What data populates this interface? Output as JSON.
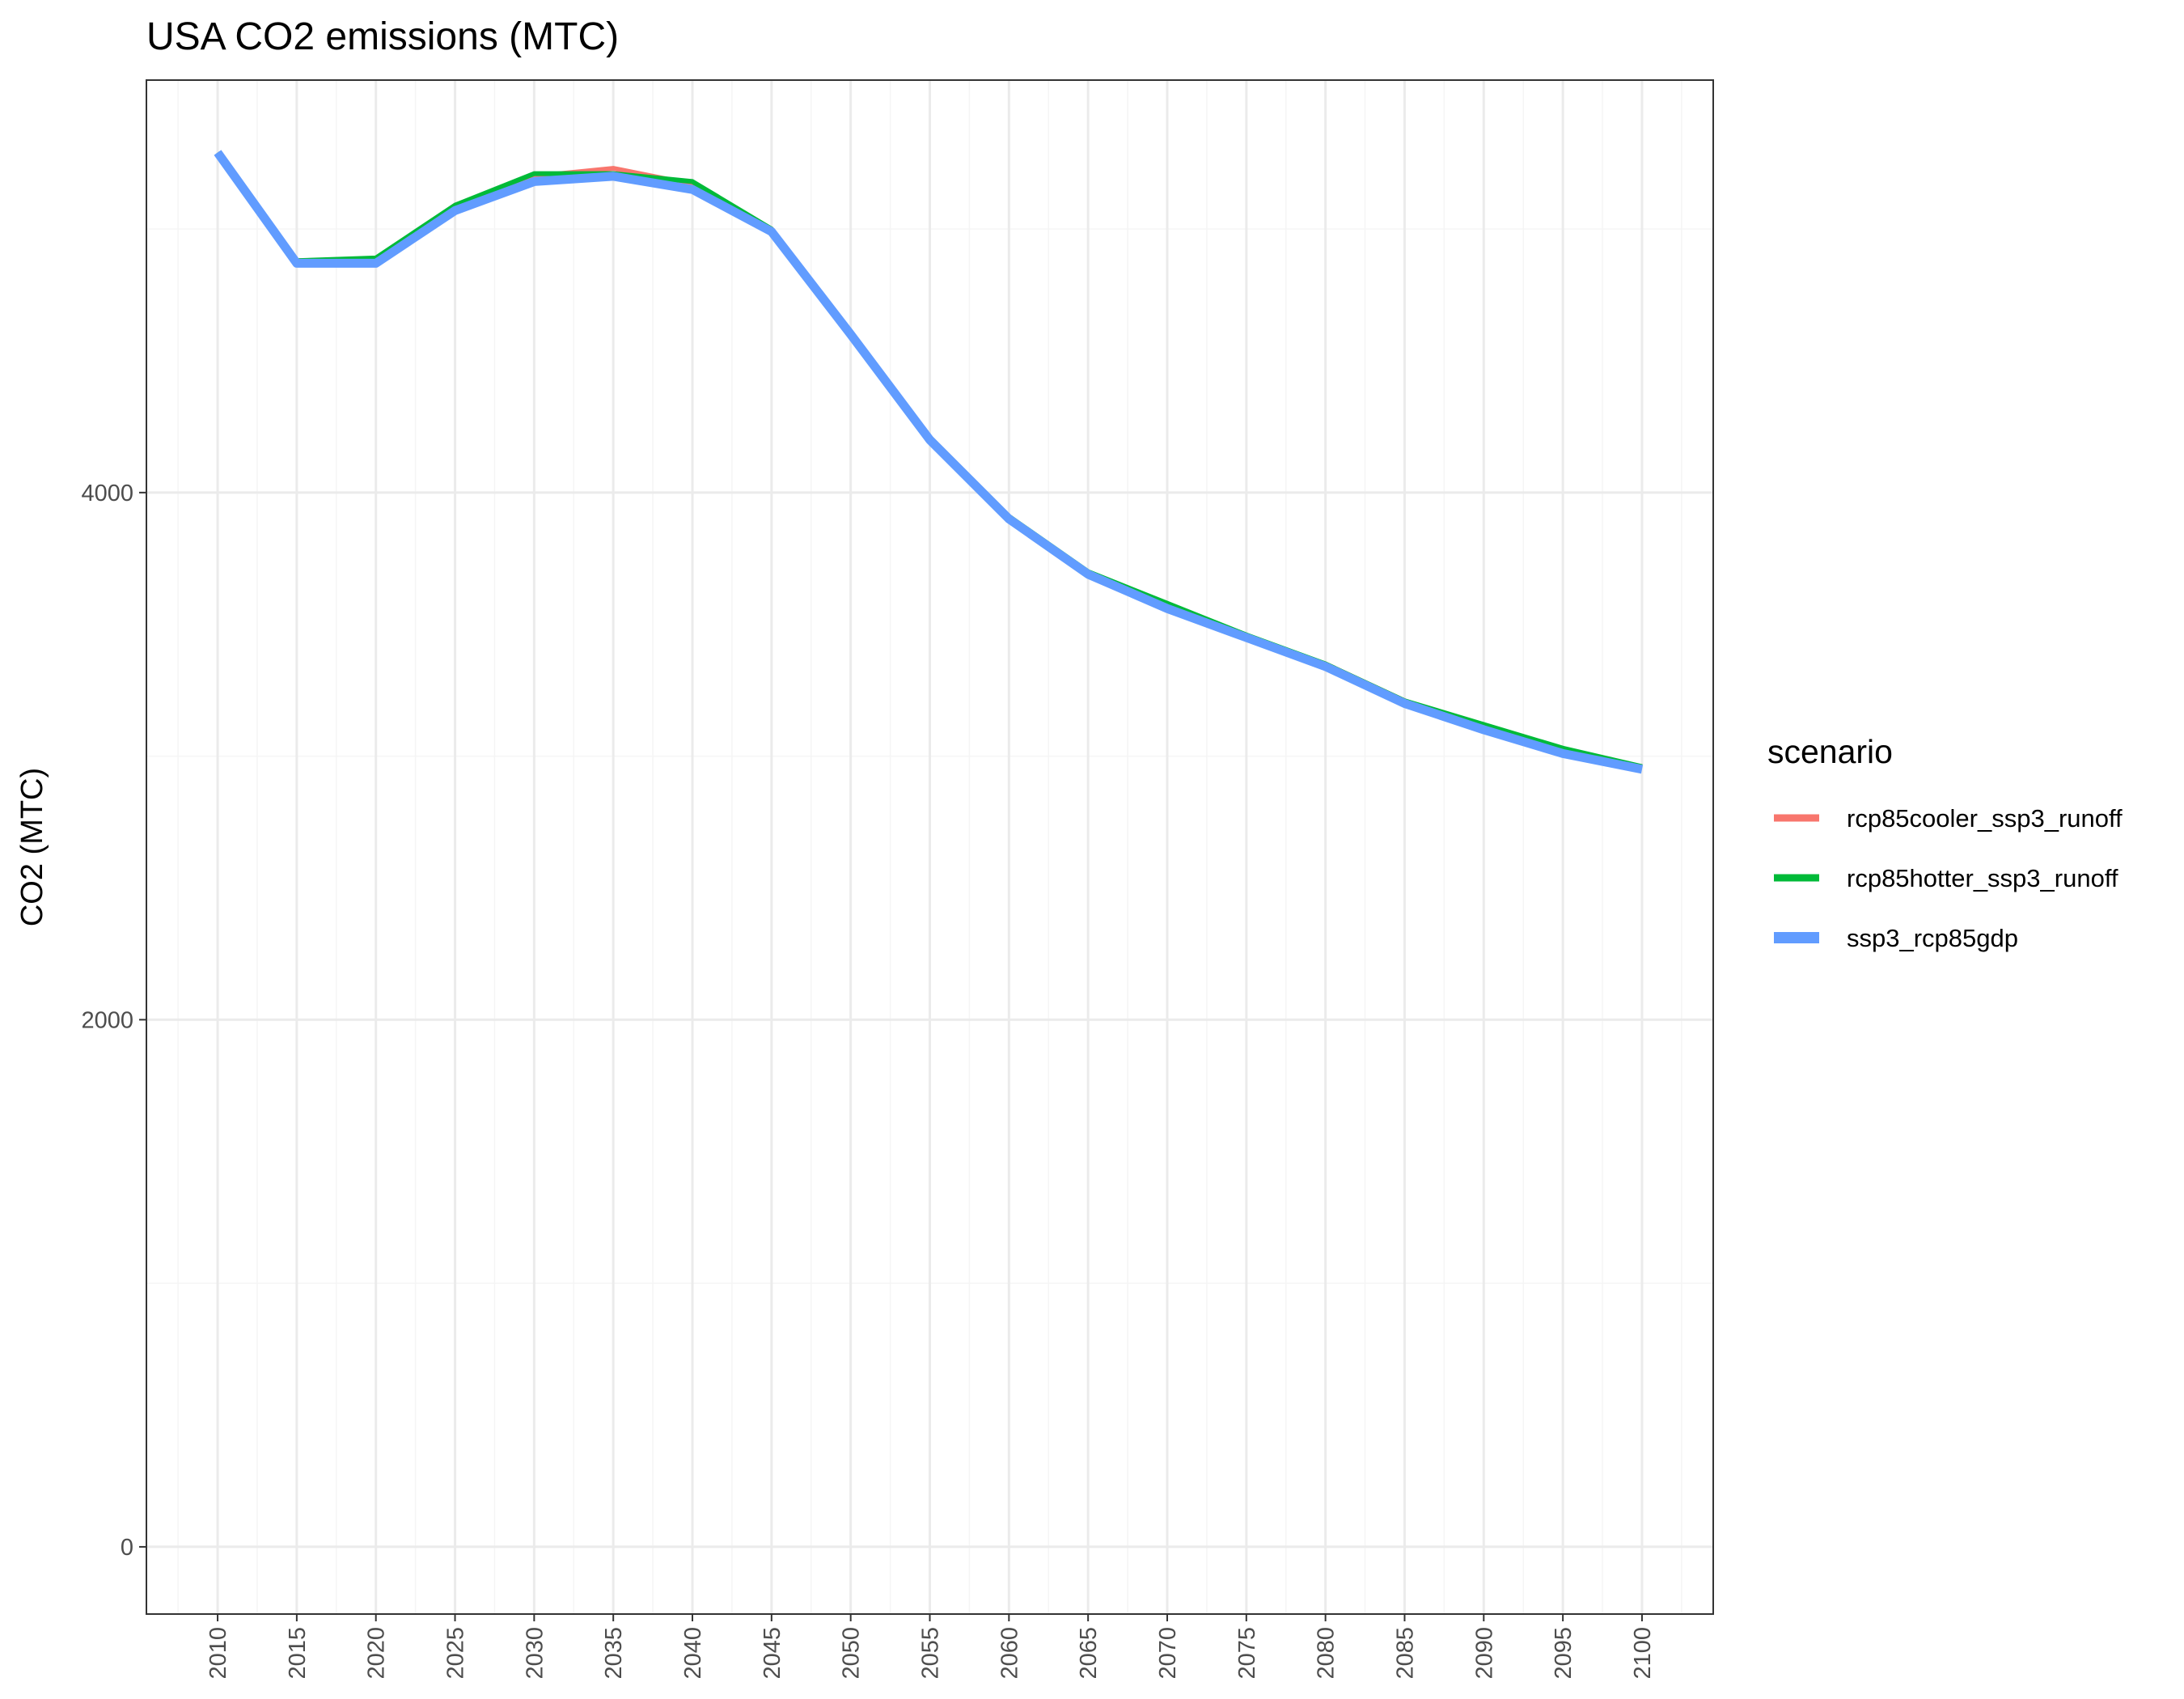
{
  "chart_data": {
    "type": "line",
    "title": "USA CO2 emissions (MTC)",
    "xlabel": "",
    "ylabel": "CO2 (MTC)",
    "x": [
      2010,
      2015,
      2020,
      2025,
      2030,
      2035,
      2040,
      2045,
      2050,
      2055,
      2060,
      2065,
      2070,
      2075,
      2080,
      2085,
      2090,
      2095,
      2100
    ],
    "x_tick_labels": [
      "2010",
      "2015",
      "2020",
      "2025",
      "2030",
      "2035",
      "2040",
      "2045",
      "2050",
      "2055",
      "2060",
      "2065",
      "2070",
      "2075",
      "2080",
      "2085",
      "2090",
      "2095",
      "2100"
    ],
    "y_ticks": [
      0,
      2000,
      4000
    ],
    "y_tick_labels": [
      "0",
      "2000",
      "4000"
    ],
    "xlim": [
      2005.5,
      2104.5
    ],
    "ylim": [
      -255,
      5565
    ],
    "grid": true,
    "legend": {
      "title": "scenario",
      "position": "right"
    },
    "series": [
      {
        "name": "rcp85cooler_ssp3_runoff",
        "color": "#F8766D",
        "values": [
          5290,
          4880,
          4880,
          5090,
          5200,
          5230,
          5170,
          5000,
          4610,
          4210,
          3910,
          3690,
          3560,
          3450,
          3350,
          3210,
          3110,
          3020,
          2960
        ]
      },
      {
        "name": "rcp85hotter_ssp3_runoff",
        "color": "#00BA38",
        "values": [
          5290,
          4880,
          4890,
          5090,
          5210,
          5210,
          5180,
          5000,
          4610,
          4210,
          3910,
          3700,
          3580,
          3460,
          3350,
          3210,
          3120,
          3030,
          2960
        ]
      },
      {
        "name": "ssp3_rcp85gdp",
        "color": "#619CFF",
        "values": [
          5290,
          4870,
          4870,
          5070,
          5180,
          5200,
          5150,
          4990,
          4600,
          4200,
          3900,
          3690,
          3560,
          3450,
          3340,
          3200,
          3100,
          3010,
          2950
        ]
      }
    ]
  }
}
